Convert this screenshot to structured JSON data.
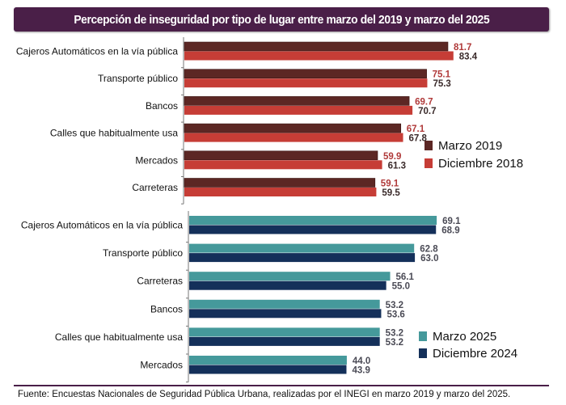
{
  "title": "Percepción de inseguridad por tipo de lugar entre marzo del 2019 y marzo del 2025",
  "source": "Fuente: Encuestas Nacionales de Seguridad Pública Urbana, realizadas por el INEGI en marzo 2019 y marzo del 2025.",
  "colors": {
    "title_bg": "#4a1f48",
    "marzo_2019": "#5c2724",
    "diciembre_2018": "#c63d36",
    "marzo_2025": "#45999b",
    "diciembre_2024": "#14305a",
    "label_2019": "#b03a3a",
    "label_2018": "#3a2a2a",
    "label_2025": "#4a4a55"
  },
  "chart_data": [
    {
      "type": "bar",
      "orientation": "horizontal",
      "title": "Percepción de inseguridad por tipo de lugar entre marzo del 2019 y marzo del 2025",
      "categories": [
        "Cajeros Automáticos en la vía pública",
        "Transporte público",
        "Bancos",
        "Calles que habitualmente usa",
        "Mercados",
        "Carreteras"
      ],
      "series": [
        {
          "name": "Marzo 2019",
          "values": [
            81.7,
            75.1,
            69.7,
            67.1,
            59.9,
            59.1
          ]
        },
        {
          "name": "Diciembre 2018",
          "values": [
            83.4,
            75.3,
            70.7,
            67.8,
            61.3,
            59.5
          ]
        }
      ],
      "value_labels": [
        [
          "81.7",
          "75.1",
          "69.7",
          "67.1",
          "59.9",
          "59.1"
        ],
        [
          "83.4",
          "75.3",
          "70.7",
          "67.8",
          "61.3",
          "59.5"
        ]
      ],
      "legend": [
        "Marzo 2019",
        "Diciembre 2018"
      ],
      "legend_position": "right",
      "xlim": [
        0,
        100
      ],
      "grid": false
    },
    {
      "type": "bar",
      "orientation": "horizontal",
      "categories": [
        "Cajeros Automáticos en la vía pública",
        "Transporte público",
        "Carreteras",
        "Bancos",
        "Calles que habitualmente usa",
        "Mercados"
      ],
      "series": [
        {
          "name": "Marzo 2025",
          "values": [
            69.1,
            62.8,
            56.1,
            53.2,
            53.2,
            44.0
          ]
        },
        {
          "name": "Diciembre 2024",
          "values": [
            68.9,
            63.0,
            55.0,
            53.6,
            53.2,
            43.9
          ]
        }
      ],
      "value_labels": [
        [
          "69.1",
          "62.8",
          "56.1",
          "53.2",
          "53.2",
          "44.0"
        ],
        [
          "68.9",
          "63.0",
          "55.0",
          "53.6",
          "53.2",
          "43.9"
        ]
      ],
      "legend": [
        "Marzo 2025",
        "Diciembre 2024"
      ],
      "legend_position": "right",
      "xlim": [
        0,
        100
      ],
      "grid": false
    }
  ]
}
